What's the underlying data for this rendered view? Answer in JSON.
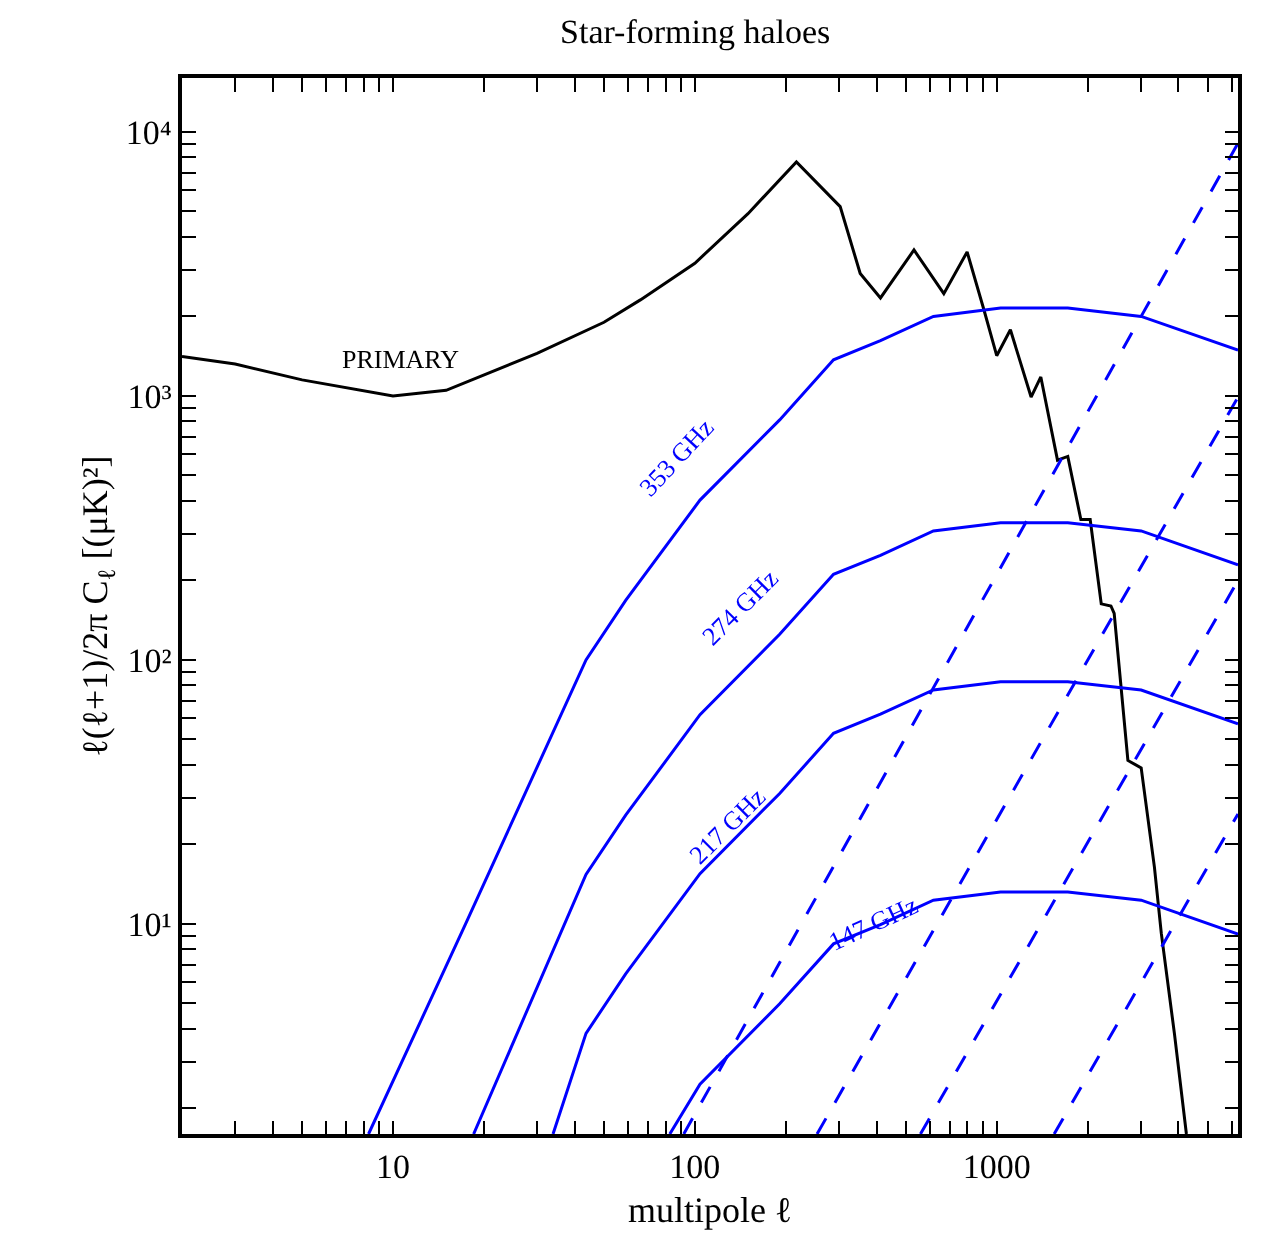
{
  "chart_data": {
    "type": "line",
    "title": "Star-forming haloes",
    "xlabel": "multipole ℓ",
    "ylabel": "ℓ(ℓ+1)/2π C$_{ℓ}$ [(μK)²]",
    "log": "xy",
    "legend": false,
    "marker": "none",
    "xlim": [
      2,
      6300
    ],
    "ylim": [
      1.6,
      16000
    ],
    "xticks": [
      {
        "value": 2,
        "label": null
      },
      {
        "value": 3,
        "label": null
      },
      {
        "value": 4,
        "label": null
      },
      {
        "value": 5,
        "label": null
      },
      {
        "value": 6,
        "label": null
      },
      {
        "value": 7,
        "label": null
      },
      {
        "value": 8,
        "label": null
      },
      {
        "value": 9,
        "label": null
      },
      10,
      {
        "value": 20,
        "label": null
      },
      {
        "value": 30,
        "label": null
      },
      {
        "value": 40,
        "label": null
      },
      {
        "value": 50,
        "label": null
      },
      {
        "value": 60,
        "label": null
      },
      {
        "value": 70,
        "label": null
      },
      {
        "value": 80,
        "label": null
      },
      {
        "value": 90,
        "label": null
      },
      100,
      {
        "value": 200,
        "label": null
      },
      {
        "value": 300,
        "label": null
      },
      {
        "value": 400,
        "label": null
      },
      {
        "value": 500,
        "label": null
      },
      {
        "value": 600,
        "label": null
      },
      {
        "value": 700,
        "label": null
      },
      {
        "value": 800,
        "label": null
      },
      {
        "value": 900,
        "label": null
      },
      1000,
      {
        "value": 2000,
        "label": null
      },
      {
        "value": 3000,
        "label": null
      },
      {
        "value": 4000,
        "label": null
      },
      {
        "value": 5000,
        "label": null
      },
      {
        "value": 6000,
        "label": null
      }
    ],
    "yticks": [
      {
        "value": 2,
        "label": null
      },
      {
        "value": 3,
        "label": null
      },
      {
        "value": 4,
        "label": null
      },
      {
        "value": 5,
        "label": null
      },
      {
        "value": 6,
        "label": null
      },
      {
        "value": 7,
        "label": null
      },
      {
        "value": 8,
        "label": null
      },
      {
        "value": 9,
        "label": null
      },
      {
        "value": 10,
        "label": "10¹"
      },
      {
        "value": 20,
        "label": null
      },
      {
        "value": 30,
        "label": null
      },
      {
        "value": 40,
        "label": null
      },
      {
        "value": 50,
        "label": null
      },
      {
        "value": 60,
        "label": null
      },
      {
        "value": 70,
        "label": null
      },
      {
        "value": 80,
        "label": null
      },
      {
        "value": 90,
        "label": null
      },
      {
        "value": 100,
        "label": "10²"
      },
      {
        "value": 200,
        "label": null
      },
      {
        "value": 300,
        "label": null
      },
      {
        "value": 400,
        "label": null
      },
      {
        "value": 500,
        "label": null
      },
      {
        "value": 600,
        "label": null
      },
      {
        "value": 700,
        "label": null
      },
      {
        "value": 800,
        "label": null
      },
      {
        "value": 900,
        "label": null
      },
      {
        "value": 1000,
        "label": "10³"
      },
      {
        "value": 2000,
        "label": null
      },
      {
        "value": 3000,
        "label": null
      },
      {
        "value": 4000,
        "label": null
      },
      {
        "value": 5000,
        "label": null
      },
      {
        "value": 6000,
        "label": null
      },
      {
        "value": 7000,
        "label": null
      },
      {
        "value": 8000,
        "label": null
      },
      {
        "value": 9000,
        "label": null
      },
      {
        "value": 10000,
        "label": "10⁴"
      }
    ],
    "series": [
      {
        "name": "PRIMARY",
        "color": "#000000",
        "line_style": "solid",
        "x": [
          2,
          3,
          5,
          10,
          15,
          30,
          50,
          66,
          100,
          150,
          217,
          303,
          353,
          412,
          532,
          668,
          798,
          908,
          1000,
          1110,
          1300,
          1400,
          1590,
          1720,
          1900,
          2040,
          2220,
          2390,
          2450,
          2720,
          3010,
          3330,
          3510,
          3880,
          4250
        ],
        "values": [
          1410,
          1320,
          1150,
          1000,
          1050,
          1450,
          1900,
          2310,
          3180,
          4900,
          7700,
          5210,
          2910,
          2350,
          3570,
          2440,
          3510,
          2110,
          1420,
          1780,
          990,
          1180,
          571,
          590,
          340,
          340,
          163,
          160,
          150,
          41.6,
          39,
          16.4,
          9.2,
          3.83,
          1.6
        ]
      },
      {
        "name": "353 GHz",
        "color": "#0000ff",
        "line_style": "solid",
        "x": [
          8.3,
          17.4,
          43.6,
          59,
          104,
          191,
          288,
          412,
          617,
          1030,
          1720,
          3010,
          6300
        ],
        "values": [
          1.6,
          10,
          100,
          168,
          403,
          811,
          1370,
          1620,
          2000,
          2150,
          2150,
          2000,
          1490
        ]
      },
      {
        "name": "274 GHz",
        "color": "#0000ff",
        "line_style": "solid",
        "x": [
          18.5,
          43.6,
          59,
          104,
          191,
          288,
          412,
          617,
          1030,
          1720,
          3010,
          6300
        ],
        "values": [
          1.6,
          15.4,
          25.8,
          62,
          125,
          211,
          249,
          308,
          331,
          331,
          308,
          229
        ]
      },
      {
        "name": "217 GHz",
        "color": "#0000ff",
        "line_style": "solid",
        "x": [
          33.9,
          43.6,
          59,
          104,
          191,
          288,
          412,
          617,
          1030,
          1720,
          3010,
          6300
        ],
        "values": [
          1.6,
          3.85,
          6.46,
          15.5,
          31.2,
          52.7,
          62.3,
          76.9,
          82.7,
          82.7,
          76.9,
          57.3
        ]
      },
      {
        "name": "147 GHz",
        "color": "#0000ff",
        "line_style": "solid",
        "x": [
          82.6,
          104,
          191,
          288,
          412,
          617,
          1030,
          1720,
          3010,
          6300
        ],
        "values": [
          1.6,
          2.47,
          4.98,
          8.4,
          9.94,
          12.3,
          13.2,
          13.2,
          12.3,
          9.14
        ]
      },
      {
        "color": "#0000ff",
        "line_style": "dashed",
        "x": [
          91.9,
          6300
        ],
        "values": [
          1.6,
          9060
        ]
      },
      {
        "color": "#0000ff",
        "line_style": "dashed",
        "x": [
          254,
          6300
        ],
        "values": [
          1.6,
          990
        ]
      },
      {
        "color": "#0000ff",
        "line_style": "dashed",
        "x": [
          559,
          6300
        ],
        "values": [
          1.6,
          200
        ]
      },
      {
        "color": "#0000ff",
        "line_style": "dashed",
        "x": [
          1550,
          6300
        ],
        "values": [
          1.6,
          26.1
        ]
      }
    ]
  }
}
